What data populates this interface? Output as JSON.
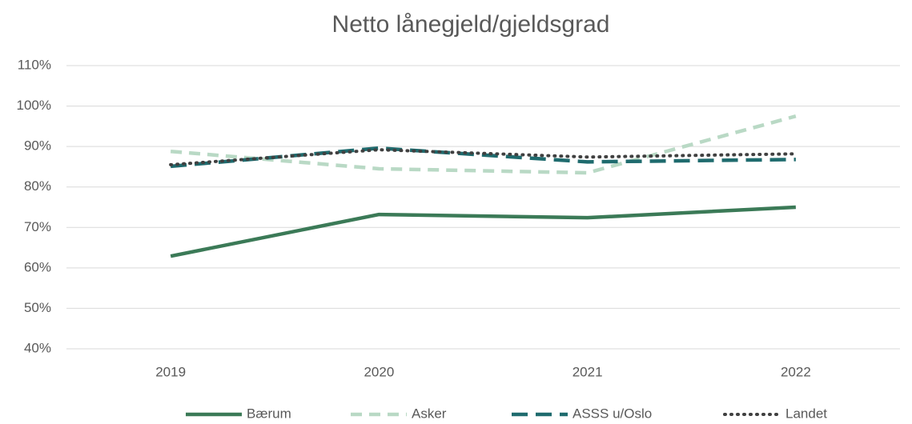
{
  "chart_data": {
    "type": "line",
    "title": "Netto lånegjeld/gjeldsgrad",
    "categories": [
      "2019",
      "2020",
      "2021",
      "2022"
    ],
    "series": [
      {
        "name": "Bærum",
        "color": "#3b7a57",
        "dash": "solid",
        "values": [
          62.9,
          73.2,
          72.4,
          75.0
        ]
      },
      {
        "name": "Asker",
        "color": "#b9d9c5",
        "dash": "dash",
        "values": [
          88.8,
          84.5,
          83.5,
          97.5
        ]
      },
      {
        "name": "ASSS u/Oslo",
        "color": "#1f6b6e",
        "dash": "longdash",
        "values": [
          85.1,
          89.6,
          86.2,
          86.8
        ]
      },
      {
        "name": "Landet",
        "color": "#404040",
        "dash": "dot",
        "values": [
          85.5,
          89.2,
          87.4,
          88.2
        ]
      }
    ],
    "ylim": [
      40,
      110
    ],
    "yticks": [
      {
        "value": 40,
        "label": "40%"
      },
      {
        "value": 50,
        "label": "50%"
      },
      {
        "value": 60,
        "label": "60%"
      },
      {
        "value": 70,
        "label": "70%"
      },
      {
        "value": 80,
        "label": "80%"
      },
      {
        "value": 90,
        "label": "90%"
      },
      {
        "value": 100,
        "label": "100%"
      },
      {
        "value": 110,
        "label": "110%"
      }
    ],
    "grid": true,
    "legend": "bottom"
  }
}
